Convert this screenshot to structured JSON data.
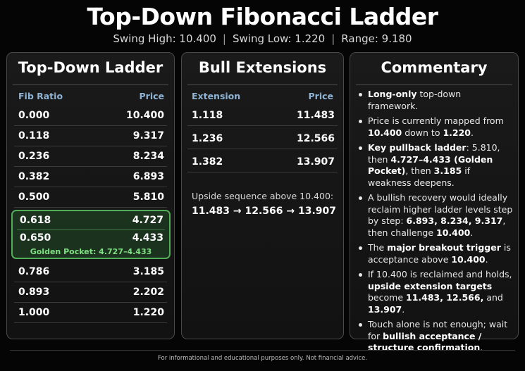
{
  "title": "Top-Down Fibonacci Ladder",
  "subtitle": {
    "swing_high": "Swing High: 10.400",
    "swing_low": "Swing Low: 1.220",
    "range": "Range: 9.180",
    "separator": "|"
  },
  "ladder": {
    "title": "Top-Down Ladder",
    "col1": "Fib Ratio",
    "col2": "Price",
    "rows_top": [
      {
        "ratio": "0.000",
        "price": "10.400"
      },
      {
        "ratio": "0.118",
        "price": "9.317"
      },
      {
        "ratio": "0.236",
        "price": "8.234"
      },
      {
        "ratio": "0.382",
        "price": "6.893"
      },
      {
        "ratio": "0.500",
        "price": "5.810"
      }
    ],
    "golden_rows": [
      {
        "ratio": "0.618",
        "price": "4.727"
      },
      {
        "ratio": "0.650",
        "price": "4.433"
      }
    ],
    "golden_label": "Golden Pocket: 4.727–4.433",
    "rows_bottom": [
      {
        "ratio": "0.786",
        "price": "3.185"
      },
      {
        "ratio": "0.893",
        "price": "2.202"
      },
      {
        "ratio": "1.000",
        "price": "1.220"
      }
    ]
  },
  "extensions": {
    "title": "Bull Extensions",
    "col1": "Extension",
    "col2": "Price",
    "rows": [
      {
        "ext": "1.118",
        "price": "11.483"
      },
      {
        "ext": "1.236",
        "price": "12.566"
      },
      {
        "ext": "1.382",
        "price": "13.907"
      }
    ],
    "upside_label": "Upside sequence above 10.400:",
    "upside_sequence": "11.483 → 12.566 → 13.907"
  },
  "commentary": {
    "title": "Commentary",
    "items": [
      [
        {
          "b": "Long-only"
        },
        {
          "t": " top-down framework."
        }
      ],
      [
        {
          "t": "Price is currently mapped from "
        },
        {
          "b": "10.400"
        },
        {
          "t": " down to "
        },
        {
          "b": "1.220"
        },
        {
          "t": "."
        }
      ],
      [
        {
          "b": "Key pullback ladder"
        },
        {
          "t": ": 5.810, then "
        },
        {
          "b": "4.727–4.433 (Golden Pocket)"
        },
        {
          "t": ", then "
        },
        {
          "b": "3.185"
        },
        {
          "t": " if weakness deepens."
        }
      ],
      [
        {
          "t": "A bullish recovery would ideally reclaim higher ladder levels step by step: "
        },
        {
          "b": "6.893, 8.234, 9.317"
        },
        {
          "t": ", then challenge "
        },
        {
          "b": "10.400"
        },
        {
          "t": "."
        }
      ],
      [
        {
          "t": "The "
        },
        {
          "b": "major breakout trigger"
        },
        {
          "t": " is acceptance above "
        },
        {
          "b": "10.400"
        },
        {
          "t": "."
        }
      ],
      [
        {
          "t": "If 10.400 is reclaimed and holds, "
        },
        {
          "b": "upside extension targets"
        },
        {
          "t": " become "
        },
        {
          "b": "11.483, 12.566,"
        },
        {
          "t": " and "
        },
        {
          "b": "13.907"
        },
        {
          "t": "."
        }
      ],
      [
        {
          "t": "Touch alone is not enough; wait for "
        },
        {
          "b": "bullish acceptance / structure confirmation"
        },
        {
          "t": "."
        }
      ]
    ]
  },
  "footer": "For informational and educational purposes only. Not financial advice.",
  "colors": {
    "background": "#050505",
    "header_text": "#8fb3d4",
    "golden_border": "#4fae57",
    "golden_label": "#7ee083"
  }
}
